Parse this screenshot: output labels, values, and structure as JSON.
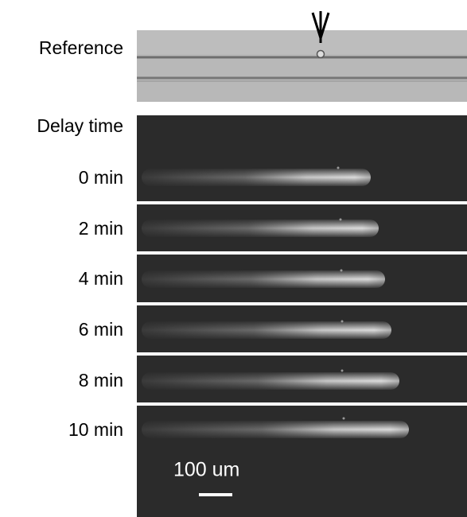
{
  "figure": {
    "reference_label": "Reference",
    "delay_label": "Delay time",
    "times": [
      "0 min",
      "2 min",
      "4 min",
      "6 min",
      "8 min",
      "10 min"
    ],
    "scale_bar_label": "100 um"
  }
}
